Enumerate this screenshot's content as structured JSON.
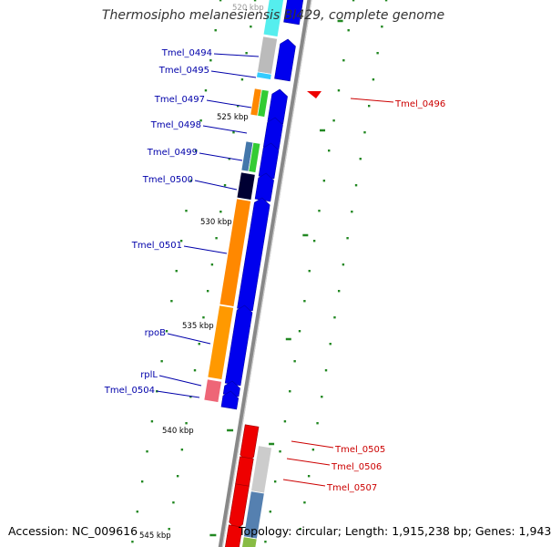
{
  "title": "Thermosipho melanesiensis BI429, complete genome",
  "footer": {
    "accession": "Accession: NC_009616",
    "topology": "Topology: circular; Length: 1,915,238 bp; Genes: 1,943"
  },
  "scale_labels": [
    "520 kbp",
    "525 kbp",
    "530 kbp",
    "535 kbp",
    "540 kbp",
    "545 kbp"
  ],
  "colors": {
    "forward_label": "#0000aa",
    "reverse_label": "#cc0000",
    "forward_strand": "#0000ee",
    "reverse_strand": "#ee0000",
    "backbone": "#888888",
    "tick": "#228822"
  },
  "forward_genes": [
    {
      "label": "Tmel_0494"
    },
    {
      "label": "Tmel_0495"
    },
    {
      "label": "Tmel_0497"
    },
    {
      "label": "Tmel_0498"
    },
    {
      "label": "Tmel_0499"
    },
    {
      "label": "Tmel_0500"
    },
    {
      "label": "Tmel_0501"
    },
    {
      "label": "rpoB"
    },
    {
      "label": "rplL"
    },
    {
      "label": "Tmel_0504"
    }
  ],
  "reverse_genes": [
    {
      "label": "Tmel_0496"
    },
    {
      "label": "Tmel_0505"
    },
    {
      "label": "Tmel_0506"
    },
    {
      "label": "Tmel_0507"
    }
  ]
}
